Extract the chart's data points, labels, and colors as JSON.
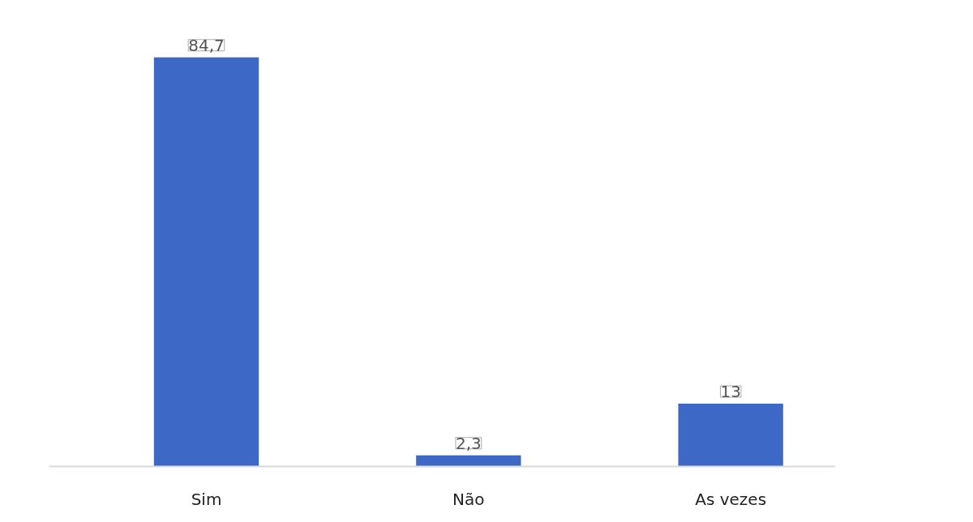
{
  "chart_data": {
    "type": "bar",
    "categories": [
      "Sim",
      "Não",
      "As vezes"
    ],
    "values": [
      84.7,
      2.3,
      13
    ],
    "value_labels": [
      "84,7",
      "2,3",
      "13"
    ],
    "color": "#3d68c6",
    "grid": false
  }
}
